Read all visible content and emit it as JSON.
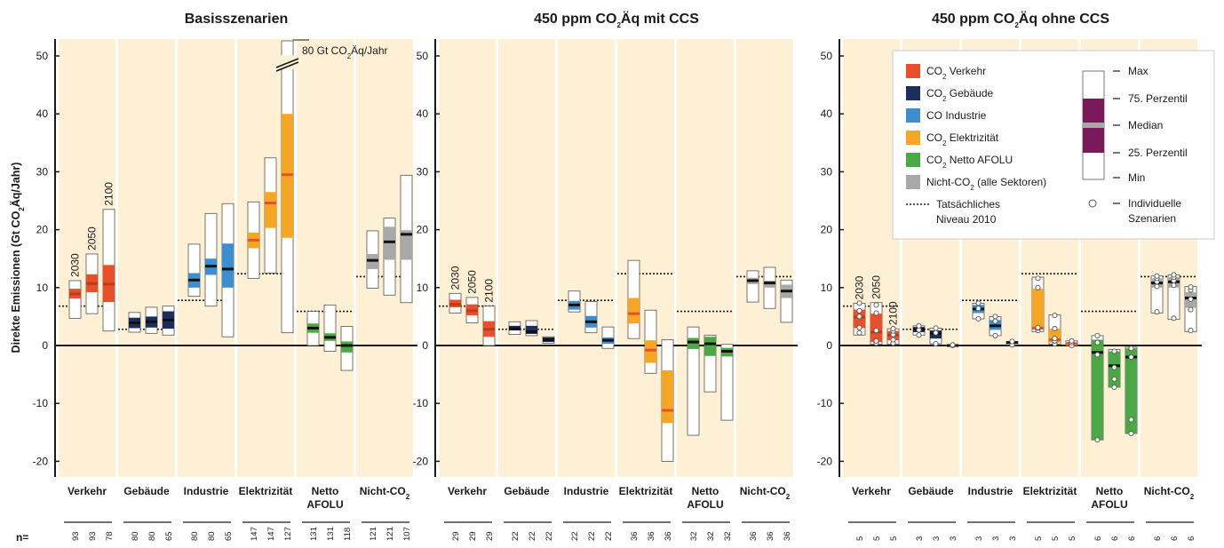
{
  "chart_data": {
    "type": "box",
    "ylabel": "Direkte Emissionen (Gt CO₂Äq/Jahr)",
    "yticks": [
      50,
      40,
      30,
      20,
      10,
      0,
      -10,
      -20
    ],
    "ylim": [
      -21.5,
      53
    ],
    "years": [
      "2030",
      "2050",
      "2100"
    ],
    "sectors": [
      {
        "key": "verkehr",
        "label": [
          "Verkehr"
        ],
        "color": "#e8502a"
      },
      {
        "key": "gebaeude",
        "label": [
          "Gebäude"
        ],
        "color": "#1b2e5e"
      },
      {
        "key": "industrie",
        "label": [
          "Industrie"
        ],
        "color": "#3b8fd1"
      },
      {
        "key": "elektrizitaet",
        "label": [
          "Elektrizität"
        ],
        "color": "#f6a623"
      },
      {
        "key": "afolu",
        "label": [
          "Netto",
          "AFOLU"
        ],
        "color": "#4aa845"
      },
      {
        "key": "nichtco2",
        "label": [
          "Nicht-CO₂"
        ],
        "color": "#a8a8a8"
      }
    ],
    "n_label": "n=",
    "panels": [
      {
        "title": "Basisszenarien",
        "break_label": "80 Gt CO₂Äq/Jahr",
        "data": {
          "verkehr": {
            "level2010": 6.8,
            "n": [
              "93",
              "93",
              "78"
            ],
            "boxes": [
              {
                "min": 4.7,
                "q1": 8.1,
                "med": 8.9,
                "q3": 9.8,
                "max": 11.2
              },
              {
                "min": 5.5,
                "q1": 9.2,
                "med": 10.7,
                "q3": 12.3,
                "max": 15.8
              },
              {
                "min": 2.5,
                "q1": 7.5,
                "med": 10.6,
                "q3": 13.9,
                "max": 23.5
              }
            ]
          },
          "gebaeude": {
            "level2010": 2.8,
            "n": [
              "80",
              "80",
              "65"
            ],
            "boxes": [
              {
                "min": 2.3,
                "q1": 3.0,
                "med": 3.9,
                "q3": 4.8,
                "max": 5.7
              },
              {
                "min": 2.1,
                "q1": 3.1,
                "med": 4.1,
                "q3": 5.0,
                "max": 6.6
              },
              {
                "min": 1.8,
                "q1": 2.9,
                "med": 4.4,
                "q3": 5.9,
                "max": 6.8
              }
            ]
          },
          "industrie": {
            "level2010": 7.8,
            "n": [
              "80",
              "80",
              "65"
            ],
            "boxes": [
              {
                "min": 8.5,
                "q1": 10.0,
                "med": 11.3,
                "q3": 12.5,
                "max": 17.5
              },
              {
                "min": 6.8,
                "q1": 12.2,
                "med": 13.7,
                "q3": 15.0,
                "max": 22.8
              },
              {
                "min": 1.5,
                "q1": 10.0,
                "med": 13.2,
                "q3": 17.6,
                "max": 24.5
              }
            ]
          },
          "elektrizitaet": {
            "level2010": 12.4,
            "n": [
              "147",
              "147",
              "127"
            ],
            "boxes": [
              {
                "min": 11.6,
                "q1": 16.8,
                "med": 18.2,
                "q3": 19.5,
                "max": 24.8
              },
              {
                "min": 12.5,
                "q1": 20.3,
                "med": 24.6,
                "q3": 26.5,
                "max": 32.4
              },
              {
                "min": 2.2,
                "q1": 18.6,
                "med": 29.5,
                "q3": 40.0,
                "max": 80
              }
            ]
          },
          "afolu": {
            "level2010": 5.9,
            "n": [
              "131",
              "131",
              "118"
            ],
            "boxes": [
              {
                "min": 0.0,
                "q1": 2.2,
                "med": 3.0,
                "q3": 3.8,
                "max": 5.9
              },
              {
                "min": -1.0,
                "q1": 0.8,
                "med": 1.4,
                "q3": 2.1,
                "max": 7.0
              },
              {
                "min": -4.3,
                "q1": -1.2,
                "med": 0.0,
                "q3": 0.7,
                "max": 3.3
              }
            ]
          },
          "nichtco2": {
            "level2010": 11.9,
            "n": [
              "121",
              "121",
              "107"
            ],
            "boxes": [
              {
                "min": 9.9,
                "q1": 13.2,
                "med": 14.7,
                "q3": 15.8,
                "max": 19.8
              },
              {
                "min": 8.7,
                "q1": 14.8,
                "med": 17.9,
                "q3": 20.5,
                "max": 22.0
              },
              {
                "min": 7.4,
                "q1": 14.8,
                "med": 19.2,
                "q3": 19.9,
                "max": 29.4
              }
            ]
          }
        }
      },
      {
        "title": "450 ppm CO₂Äq mit CCS",
        "data": {
          "verkehr": {
            "level2010": 6.8,
            "n": [
              "29",
              "29",
              "29"
            ],
            "boxes": [
              {
                "min": 5.6,
                "q1": 6.6,
                "med": 7.1,
                "q3": 7.9,
                "max": 9.0
              },
              {
                "min": 3.9,
                "q1": 5.2,
                "med": 6.0,
                "q3": 7.1,
                "max": 8.3
              },
              {
                "min": 0.0,
                "q1": 1.5,
                "med": 2.8,
                "q3": 4.2,
                "max": 6.8
              }
            ]
          },
          "gebaeude": {
            "level2010": 2.8,
            "n": [
              "22",
              "22",
              "22"
            ],
            "boxes": [
              {
                "min": 1.9,
                "q1": 2.6,
                "med": 2.9,
                "q3": 3.4,
                "max": 4.1
              },
              {
                "min": 1.7,
                "q1": 2.0,
                "med": 2.4,
                "q3": 3.4,
                "max": 4.3
              },
              {
                "min": 0.4,
                "q1": 0.6,
                "med": 1.0,
                "q3": 1.4,
                "max": 1.5
              }
            ]
          },
          "industrie": {
            "level2010": 7.8,
            "n": [
              "22",
              "22",
              "22"
            ],
            "boxes": [
              {
                "min": 5.8,
                "q1": 6.2,
                "med": 7.0,
                "q3": 7.7,
                "max": 9.4
              },
              {
                "min": 2.2,
                "q1": 3.1,
                "med": 4.1,
                "q3": 5.1,
                "max": 7.6
              },
              {
                "min": -0.5,
                "q1": 0.3,
                "med": 0.9,
                "q3": 1.4,
                "max": 3.2
              }
            ]
          },
          "elektrizitaet": {
            "level2010": 12.4,
            "n": [
              "36",
              "36",
              "36"
            ],
            "boxes": [
              {
                "min": 1.2,
                "q1": 3.8,
                "med": 5.5,
                "q3": 8.2,
                "max": 14.7
              },
              {
                "min": -4.8,
                "q1": -3.0,
                "med": -0.8,
                "q3": 0.9,
                "max": 6.1
              },
              {
                "min": -20.0,
                "q1": -13.4,
                "med": -11.2,
                "q3": -4.3,
                "max": 1.0
              }
            ]
          },
          "afolu": {
            "level2010": 5.9,
            "n": [
              "32",
              "32",
              "32"
            ],
            "boxes": [
              {
                "min": -15.5,
                "q1": -0.6,
                "med": 0.6,
                "q3": 1.3,
                "max": 3.2
              },
              {
                "min": -8.0,
                "q1": -1.8,
                "med": 0.3,
                "q3": 1.5,
                "max": 1.8
              },
              {
                "min": -12.9,
                "q1": -1.9,
                "med": -1.0,
                "q3": -0.4,
                "max": 0.2
              }
            ]
          },
          "nichtco2": {
            "level2010": 11.9,
            "n": [
              "36",
              "36",
              "36"
            ],
            "boxes": [
              {
                "min": 7.5,
                "q1": 10.6,
                "med": 11.2,
                "q3": 11.7,
                "max": 12.9
              },
              {
                "min": 6.4,
                "q1": 10.0,
                "med": 10.8,
                "q3": 11.2,
                "max": 13.5
              },
              {
                "min": 4.0,
                "q1": 8.2,
                "med": 9.4,
                "q3": 10.5,
                "max": 11.3
              }
            ]
          }
        }
      },
      {
        "title": "450 ppm CO₂Äq ohne CCS",
        "data": {
          "verkehr": {
            "level2010": 6.8,
            "n": [
              "5",
              "5",
              "5"
            ],
            "boxes": [
              {
                "min": 1.8,
                "q1": 3.0,
                "med": 4.9,
                "q3": 6.2,
                "max": 7.3,
                "pts": [
                  2.2,
                  3.1,
                  5.0,
                  6.0,
                  7.3
                ]
              },
              {
                "min": 0.2,
                "q1": 0.6,
                "med": 2.3,
                "q3": 5.5,
                "max": 7.4,
                "pts": [
                  0.4,
                  0.8,
                  2.6,
                  5.6,
                  7.0
                ]
              },
              {
                "min": 0.2,
                "q1": 0.9,
                "med": 1.8,
                "q3": 2.5,
                "max": 2.9,
                "pts": [
                  0.4,
                  1.0,
                  1.9,
                  2.5,
                  2.9
                ]
              }
            ]
          },
          "gebaeude": {
            "level2010": 2.8,
            "n": [
              "3",
              "3",
              "3"
            ],
            "boxes": [
              {
                "min": 1.8,
                "q1": 2.3,
                "med": 2.8,
                "q3": 3.2,
                "max": 3.4,
                "pts": [
                  1.8,
                  2.7,
                  3.4
                ]
              },
              {
                "min": 0.3,
                "q1": 1.2,
                "med": 2.1,
                "q3": 2.6,
                "max": 3.0,
                "pts": [
                  0.3,
                  2.2,
                  3.0
                ]
              },
              {
                "min": 0.0,
                "q1": 0.0,
                "med": 0.0,
                "q3": 0.1,
                "max": 0.1,
                "pts": [
                  0.0,
                  0.1
                ]
              }
            ]
          },
          "industrie": {
            "level2010": 7.8,
            "n": [
              "3",
              "3",
              "3"
            ],
            "boxes": [
              {
                "min": 4.6,
                "q1": 5.6,
                "med": 6.3,
                "q3": 7.0,
                "max": 7.3,
                "pts": [
                  4.6,
                  6.4,
                  7.3
                ]
              },
              {
                "min": 1.7,
                "q1": 2.7,
                "med": 3.4,
                "q3": 4.4,
                "max": 5.0,
                "pts": [
                  1.7,
                  4.2,
                  5.0
                ]
              },
              {
                "min": 0.1,
                "q1": 0.3,
                "med": 0.5,
                "q3": 0.6,
                "max": 0.7,
                "pts": [
                  0.1,
                  0.7
                ]
              }
            ]
          },
          "elektrizitaet": {
            "level2010": 12.4,
            "n": [
              "5",
              "5",
              "5"
            ],
            "boxes": [
              {
                "min": 2.4,
                "q1": 2.8,
                "med": 3.0,
                "q3": 9.8,
                "max": 11.8,
                "pts": [
                  2.6,
                  3.0,
                  3.1,
                  10.0,
                  11.6
                ]
              },
              {
                "min": 0.2,
                "q1": 0.5,
                "med": 1.0,
                "q3": 2.9,
                "max": 5.3,
                "pts": [
                  0.3,
                  0.8,
                  1.2,
                  2.9,
                  5.2
                ]
              },
              {
                "min": 0.0,
                "q1": 0.0,
                "med": 0.3,
                "q3": 0.6,
                "max": 0.8,
                "pts": [
                  0.0,
                  0.5,
                  0.8
                ]
              }
            ]
          },
          "afolu": {
            "level2010": 5.9,
            "n": [
              "6",
              "6",
              "6"
            ],
            "boxes": [
              {
                "min": -16.3,
                "q1": -16.3,
                "med": -1.2,
                "q3": 1.0,
                "max": 1.7,
                "pts": [
                  -16.3,
                  -1.6,
                  0.5,
                  1.7
                ]
              },
              {
                "min": -7.2,
                "q1": -7.2,
                "med": -3.5,
                "q3": -1.0,
                "max": -0.7,
                "pts": [
                  -7.2,
                  -5.8,
                  -3.8,
                  -1.0
                ]
              },
              {
                "min": -15.2,
                "q1": -15.2,
                "med": -2.0,
                "q3": -0.5,
                "max": -0.3,
                "pts": [
                  -15.2,
                  -12.8,
                  -2.0,
                  -0.5
                ]
              }
            ]
          },
          "nichtco2": {
            "level2010": 11.9,
            "n": [
              "6",
              "6",
              "6"
            ],
            "boxes": [
              {
                "min": 5.6,
                "q1": 10.0,
                "med": 10.8,
                "q3": 11.6,
                "max": 12.0,
                "pts": [
                  5.8,
                  10.2,
                  11.0,
                  11.6,
                  12.0
                ]
              },
              {
                "min": 4.5,
                "q1": 10.0,
                "med": 11.0,
                "q3": 11.8,
                "max": 12.2,
                "pts": [
                  4.7,
                  10.4,
                  11.2,
                  11.8,
                  12.2
                ]
              },
              {
                "min": 2.4,
                "q1": 6.5,
                "med": 8.2,
                "q3": 9.2,
                "max": 10.2,
                "pts": [
                  2.6,
                  6.2,
                  8.0,
                  9.6,
                  10.1
                ]
              }
            ]
          }
        }
      }
    ],
    "legend": {
      "items": [
        {
          "label": "CO₂ Verkehr",
          "color": "#e8502a"
        },
        {
          "label": "CO₂ Gebäude",
          "color": "#1b2e5e"
        },
        {
          "label": "CO  Industrie",
          "color": "#3b8fd1"
        },
        {
          "label": "CO₂ Elektrizität",
          "color": "#f6a623"
        },
        {
          "label": "CO₂ Netto AFOLU",
          "color": "#4aa845"
        },
        {
          "label": "Nicht-CO₂ (alle Sektoren)",
          "color": "#a8a8a8"
        }
      ],
      "dotted_label": [
        "Tatsächliches",
        "Niveau 2010"
      ],
      "box_labels": [
        "Max",
        "75. Perzentil",
        "Median",
        "25. Perzentil",
        "Min"
      ],
      "individual_label": [
        "Individuelle",
        "Szenarien"
      ],
      "box_color": "#7b1a5a",
      "median_color": "#a8a8a8"
    }
  }
}
